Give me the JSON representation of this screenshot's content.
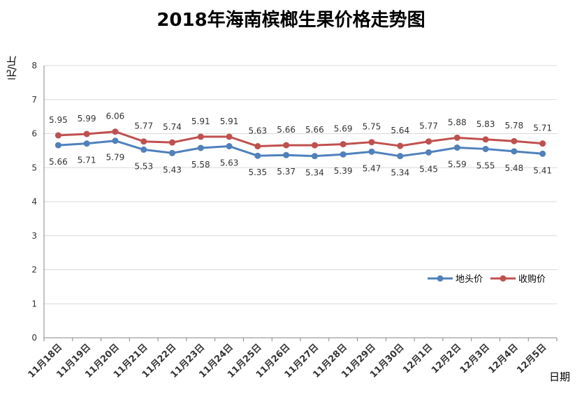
{
  "chart_data": {
    "type": "line",
    "title": "2018年海南槟榔生果价格走势图",
    "xlabel": "日期",
    "ylabel": "元/斤",
    "ylim": [
      0,
      8
    ],
    "yticks": [
      0,
      1,
      2,
      3,
      4,
      5,
      6,
      7,
      8
    ],
    "grid": true,
    "legend": "right",
    "categories": [
      "11月18日",
      "11月19日",
      "11月20日",
      "11月21日",
      "11月22日",
      "11月23日",
      "11月24日",
      "11月25日",
      "11月26日",
      "11月27日",
      "11月28日",
      "11月29日",
      "11月30日",
      "12月1日",
      "12月2日",
      "12月3日",
      "12月4日",
      "12月5日"
    ],
    "series": [
      {
        "name": "地头价",
        "color": "#4f81bd",
        "values": [
          5.66,
          5.71,
          5.79,
          5.53,
          5.43,
          5.58,
          5.63,
          5.35,
          5.37,
          5.34,
          5.39,
          5.47,
          5.34,
          5.45,
          5.59,
          5.55,
          5.48,
          5.41
        ]
      },
      {
        "name": "收购价",
        "color": "#c0504d",
        "values": [
          5.95,
          5.99,
          6.06,
          5.77,
          5.74,
          5.91,
          5.91,
          5.63,
          5.66,
          5.66,
          5.69,
          5.75,
          5.64,
          5.77,
          5.88,
          5.83,
          5.78,
          5.71
        ]
      }
    ]
  }
}
